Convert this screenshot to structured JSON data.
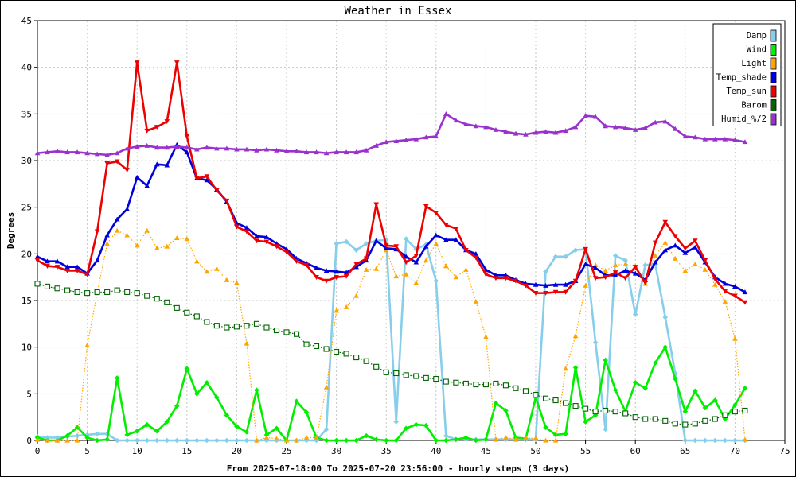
{
  "chart_data": {
    "type": "line",
    "title": "Weather in Essex",
    "xlabel": "From 2025-07-18:00 To 2025-07-20 23:56:00 - hourly steps (3 days)",
    "ylabel": "Degrees",
    "xlim": [
      0,
      75
    ],
    "ylim": [
      0,
      45
    ],
    "xticks": [
      0,
      5,
      10,
      15,
      20,
      25,
      30,
      35,
      40,
      45,
      50,
      55,
      60,
      65,
      70,
      75
    ],
    "yticks": [
      0,
      5,
      10,
      15,
      20,
      25,
      30,
      35,
      40,
      45
    ],
    "grid": true,
    "legend_position": "top-right",
    "x": [
      0,
      1,
      2,
      3,
      4,
      5,
      6,
      7,
      8,
      9,
      10,
      11,
      12,
      13,
      14,
      15,
      16,
      17,
      18,
      19,
      20,
      21,
      22,
      23,
      24,
      25,
      26,
      27,
      28,
      29,
      30,
      31,
      32,
      33,
      34,
      35,
      36,
      37,
      38,
      39,
      40,
      41,
      42,
      43,
      44,
      45,
      46,
      47,
      48,
      49,
      50,
      51,
      52,
      53,
      54,
      55,
      56,
      57,
      58,
      59,
      60,
      61,
      62,
      63,
      64,
      65,
      66,
      67,
      68,
      69,
      70,
      71
    ],
    "series": [
      {
        "name": "Damp",
        "color": "#87ceeb",
        "marker": "diamond",
        "line": "solid",
        "values": [
          0.4,
          0.3,
          0.3,
          0.4,
          0.5,
          0.6,
          0.7,
          0.7,
          0,
          0,
          0,
          0,
          0,
          0,
          0,
          0,
          0,
          0,
          0,
          0,
          0,
          0,
          0,
          0,
          0,
          0,
          0,
          0,
          0,
          1.2,
          21.1,
          21.3,
          20.4,
          21.1,
          21.4,
          21.5,
          2,
          21.6,
          20.5,
          21,
          17.1,
          0.5,
          0.1,
          0.1,
          0.1,
          0.1,
          0.1,
          0.1,
          0.1,
          0.1,
          0.1,
          18.1,
          19.7,
          19.7,
          20.4,
          20.5,
          10.5,
          1.2,
          19.8,
          19.3,
          13.5,
          18.8,
          18.9,
          13.2,
          7.2,
          0,
          0,
          0,
          0,
          0,
          0,
          0
        ]
      },
      {
        "name": "Wind",
        "color": "#00ee00",
        "marker": "diamond",
        "line": "solid",
        "values": [
          0.3,
          0,
          0,
          0.5,
          1.4,
          0.3,
          0,
          0.1,
          6.7,
          0.6,
          1,
          1.7,
          1,
          2,
          3.7,
          7.7,
          5,
          6.2,
          4.6,
          2.7,
          1.5,
          0.9,
          5.4,
          0.6,
          1.3,
          0,
          4.2,
          3,
          0.3,
          0,
          0,
          0,
          0,
          0.5,
          0.1,
          0,
          0,
          1.3,
          1.7,
          1.6,
          0,
          0,
          0.1,
          0.3,
          0,
          0.1,
          4,
          3.2,
          0.3,
          0.2,
          4.6,
          1.4,
          0.6,
          0.7,
          7.8,
          2,
          2.7,
          8.6,
          5.4,
          3.1,
          6.2,
          5.6,
          8.3,
          10,
          6.6,
          3.1,
          5.3,
          3.5,
          4.3,
          2.3,
          3.8,
          5.6
        ]
      },
      {
        "name": "Light",
        "color": "#ffa500",
        "marker": "triangle-up",
        "line": "dotted",
        "values": [
          0.1,
          0,
          0,
          0,
          0,
          10.2,
          15.8,
          21.1,
          22.5,
          22,
          20.9,
          22.5,
          20.6,
          20.8,
          21.7,
          21.6,
          19.2,
          18.1,
          18.4,
          17.2,
          16.9,
          10.4,
          0,
          0.3,
          0.2,
          0,
          0,
          0.3,
          0.3,
          5.7,
          13.9,
          14.3,
          15.5,
          18.3,
          18.4,
          20.4,
          17.6,
          17.8,
          16.9,
          19.3,
          21.1,
          18.7,
          17.5,
          18.3,
          14.9,
          11.1,
          0.1,
          0.3,
          0.1,
          0.3,
          0.2,
          0,
          0,
          7.7,
          11.2,
          16.6,
          18.8,
          18.2,
          18.8,
          18.9,
          18.7,
          16.8,
          19.8,
          21.2,
          19.5,
          18.2,
          18.9,
          18.3,
          16.7,
          14.9,
          10.9,
          0.1
        ]
      },
      {
        "name": "Temp_shade",
        "color": "#0000dd",
        "marker": "triangle-up",
        "line": "solid",
        "values": [
          19.7,
          19.2,
          19.2,
          18.6,
          18.6,
          17.9,
          19.3,
          22,
          23.7,
          24.8,
          28.2,
          27.3,
          29.6,
          29.5,
          31.7,
          30.9,
          28.1,
          27.9,
          26.9,
          25.6,
          23.3,
          22.8,
          21.9,
          21.8,
          21.1,
          20.5,
          19.5,
          19,
          18.5,
          18.2,
          18.1,
          18,
          18.6,
          19.3,
          21.4,
          20.6,
          20.5,
          19.7,
          19.1,
          20.8,
          22,
          21.5,
          21.5,
          20.4,
          20,
          18.3,
          17.7,
          17.7,
          17.2,
          16.8,
          16.7,
          16.6,
          16.7,
          16.7,
          17.1,
          18.9,
          18.5,
          17.7,
          17.7,
          18.2,
          17.9,
          17.2,
          19.1,
          20.4,
          20.9,
          20.1,
          20.7,
          19.1,
          17.5,
          16.8,
          16.5,
          15.9
        ]
      },
      {
        "name": "Temp_sun",
        "color": "#ee0000",
        "marker": "triangle-down",
        "line": "solid",
        "values": [
          19.3,
          18.7,
          18.6,
          18.2,
          18.2,
          17.8,
          22.4,
          29.7,
          29.9,
          29,
          40.5,
          33.2,
          33.6,
          34.2,
          40.5,
          32.6,
          28.1,
          28.3,
          26.8,
          25.7,
          22.9,
          22.4,
          21.4,
          21.3,
          20.8,
          20.2,
          19.2,
          18.8,
          17.5,
          17.1,
          17.5,
          17.6,
          18.9,
          19.5,
          25.3,
          20.9,
          20.8,
          19.1,
          19.8,
          25.1,
          24.4,
          23.1,
          22.7,
          20.4,
          19.6,
          17.8,
          17.4,
          17.4,
          17.1,
          16.6,
          15.8,
          15.8,
          15.9,
          15.9,
          17.1,
          20.5,
          17.4,
          17.5,
          18,
          17.4,
          18.6,
          16.9,
          21.2,
          23.4,
          21.9,
          20.6,
          21.4,
          19.3,
          17.3,
          16,
          15.5,
          14.8
        ]
      },
      {
        "name": "Barom",
        "color": "#006400",
        "marker": "square-open",
        "line": "dotted",
        "values": [
          16.8,
          16.5,
          16.3,
          16.1,
          15.9,
          15.8,
          15.9,
          15.9,
          16.1,
          15.9,
          15.8,
          15.5,
          15.2,
          14.8,
          14.2,
          13.7,
          13.3,
          12.7,
          12.3,
          12.1,
          12.2,
          12.3,
          12.5,
          12.1,
          11.8,
          11.6,
          11.4,
          10.3,
          10.1,
          9.8,
          9.5,
          9.3,
          8.9,
          8.5,
          7.9,
          7.3,
          7.2,
          7,
          6.9,
          6.7,
          6.6,
          6.3,
          6.2,
          6.1,
          6,
          6,
          6.1,
          5.9,
          5.6,
          5.3,
          4.9,
          4.5,
          4.3,
          4,
          3.7,
          3.4,
          3.1,
          3.2,
          3.1,
          2.9,
          2.5,
          2.3,
          2.3,
          2.1,
          1.8,
          1.7,
          1.8,
          2.1,
          2.3,
          2.7,
          3.1,
          3.2
        ]
      },
      {
        "name": "Humid_%/2",
        "color": "#9932cc",
        "marker": "triangle-up",
        "line": "solid",
        "values": [
          30.8,
          30.9,
          31,
          30.9,
          30.9,
          30.8,
          30.7,
          30.6,
          30.8,
          31.3,
          31.5,
          31.6,
          31.4,
          31.4,
          31.5,
          31.4,
          31.2,
          31.4,
          31.3,
          31.3,
          31.2,
          31.2,
          31.1,
          31.2,
          31.1,
          31,
          31,
          30.9,
          30.9,
          30.8,
          30.9,
          30.9,
          30.9,
          31.1,
          31.6,
          32,
          32.1,
          32.2,
          32.3,
          32.5,
          32.6,
          35,
          34.3,
          33.9,
          33.7,
          33.6,
          33.3,
          33.1,
          32.9,
          32.8,
          33,
          33.1,
          33,
          33.2,
          33.6,
          34.8,
          34.7,
          33.7,
          33.6,
          33.5,
          33.3,
          33.5,
          34.1,
          34.2,
          33.4,
          32.6,
          32.5,
          32.3,
          32.3,
          32.3,
          32.2,
          32
        ]
      }
    ]
  }
}
